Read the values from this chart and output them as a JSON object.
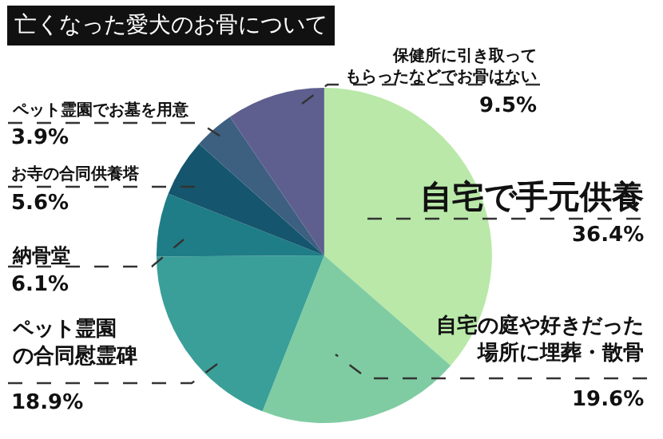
{
  "chart_data": {
    "type": "pie",
    "title": "亡くなった愛犬のお骨について",
    "categories": [
      "自宅で手元供養",
      "自宅の庭や好きだった場所に埋葬・散骨",
      "ペット霊園の合同慰霊碑",
      "納骨堂",
      "お寺の合同供養塔",
      "ペット霊園でお墓を用意",
      "保健所に引き取ってもらったなどでお骨はない"
    ],
    "values": [
      36.4,
      19.6,
      18.9,
      6.1,
      5.6,
      3.9,
      9.5
    ],
    "value_labels": [
      "36.4%",
      "19.6%",
      "18.9%",
      "6.1%",
      "5.6%",
      "3.9%",
      "9.5%"
    ],
    "colors": [
      "#b9e8a8",
      "#80cca2",
      "#3a9f98",
      "#1e7d86",
      "#15566e",
      "#3d5f80",
      "#5e5f8e"
    ],
    "legend": false
  }
}
